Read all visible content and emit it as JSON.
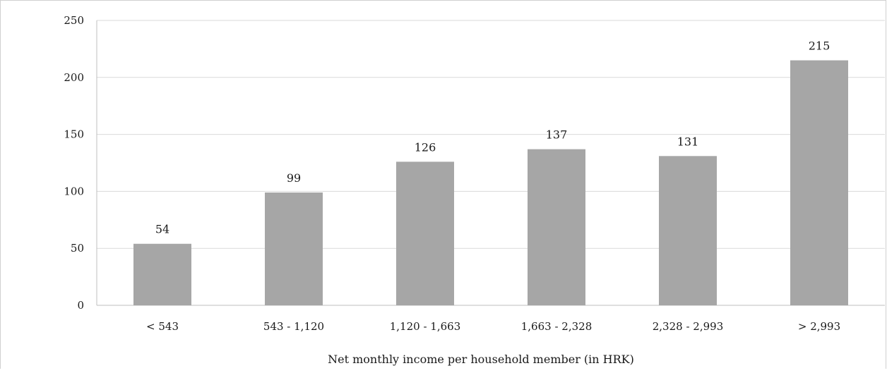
{
  "chart_data": {
    "type": "bar",
    "title": "",
    "xlabel": "Net monthly income per household member (in HRK)",
    "ylabel": "",
    "categories": [
      "< 543",
      "543 - 1,120",
      "1,120 - 1,663",
      "1,663 - 2,328",
      "2,328 - 2,993",
      "> 2,993"
    ],
    "values": [
      54,
      99,
      126,
      137,
      131,
      215
    ],
    "data_labels": [
      "54",
      "99",
      "126",
      "137",
      "131",
      "215"
    ],
    "ylim": [
      0,
      250
    ],
    "yticks": [
      "0",
      "50",
      "100",
      "150",
      "200",
      "250"
    ],
    "grid": true,
    "legend": "none",
    "colors": {
      "bar": "#a6a6a6",
      "grid": "#d9d9d9",
      "axis": "#bfbfbf"
    }
  }
}
